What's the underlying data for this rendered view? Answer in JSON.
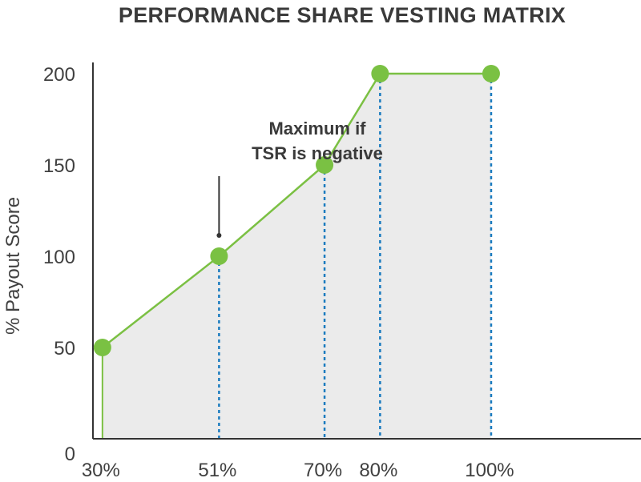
{
  "chart_data": {
    "type": "area",
    "title": "PERFORMANCE SHARE VESTING MATRIX",
    "xlabel": "",
    "ylabel": "% Payout Score",
    "ylim": [
      0,
      200
    ],
    "y_ticks": [
      "0",
      "50",
      "100",
      "150",
      "200"
    ],
    "x_ticks": [
      "30%",
      "51%",
      "70%",
      "80%",
      "100%"
    ],
    "series": [
      {
        "name": "Payout",
        "x": [
          30,
          51,
          70,
          80,
          100
        ],
        "values": [
          50,
          100,
          150,
          200,
          200
        ]
      }
    ],
    "colors": {
      "line": "#7bc043",
      "marker": "#7ac143",
      "fill": "#ebebeb",
      "guide": "#1a7bbf",
      "axis": "#333333"
    },
    "annotation": {
      "lines": [
        "Maximum if",
        "TSR is negative"
      ],
      "x": 51,
      "y": 100
    }
  }
}
